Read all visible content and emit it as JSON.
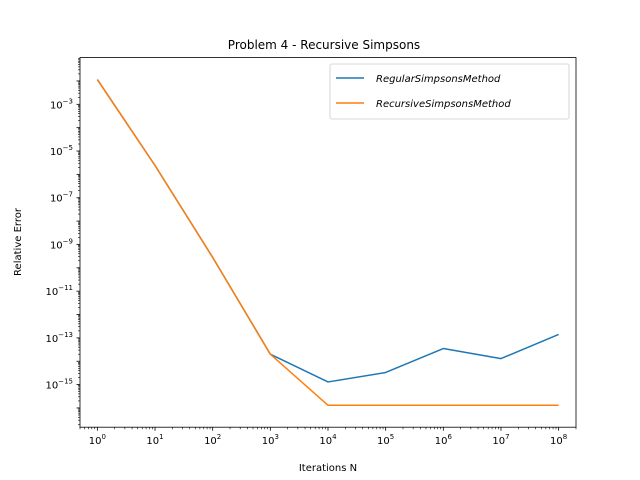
{
  "chart_data": {
    "type": "line",
    "title": "Problem 4 - Recursive Simpsons",
    "xlabel": "Iterations N",
    "ylabel": "Relative Error",
    "xscale": "log",
    "yscale": "log",
    "xlim": [
      0.5,
      200000000
    ],
    "ylim": [
      1.5e-17,
      0.1
    ],
    "grid": false,
    "legend_position": "top-right",
    "x": [
      1,
      10,
      100,
      1000,
      10000,
      100000,
      1000000,
      10000000,
      100000000
    ],
    "x_ticks": [
      {
        "base": "10",
        "exp": "0",
        "value": 1
      },
      {
        "base": "10",
        "exp": "1",
        "value": 10
      },
      {
        "base": "10",
        "exp": "2",
        "value": 100
      },
      {
        "base": "10",
        "exp": "3",
        "value": 1000
      },
      {
        "base": "10",
        "exp": "4",
        "value": 10000
      },
      {
        "base": "10",
        "exp": "5",
        "value": 100000
      },
      {
        "base": "10",
        "exp": "6",
        "value": 1000000
      },
      {
        "base": "10",
        "exp": "7",
        "value": 10000000
      },
      {
        "base": "10",
        "exp": "8",
        "value": 100000000
      }
    ],
    "y_ticks": [
      {
        "base": "10",
        "exp": "−15",
        "value": 1e-15
      },
      {
        "base": "10",
        "exp": "−13",
        "value": 1e-13
      },
      {
        "base": "10",
        "exp": "−11",
        "value": 1e-11
      },
      {
        "base": "10",
        "exp": "−9",
        "value": 1e-09
      },
      {
        "base": "10",
        "exp": "−7",
        "value": 1e-07
      },
      {
        "base": "10",
        "exp": "−5",
        "value": 1e-05
      },
      {
        "base": "10",
        "exp": "−3",
        "value": 0.001
      }
    ],
    "series": [
      {
        "name": "RegularSimpsonsMethod",
        "color": "#1f77b4",
        "values": [
          0.0115,
          2.4e-06,
          2.8e-10,
          2e-14,
          1.3e-15,
          3.3e-15,
          3.5e-14,
          1.3e-14,
          1.4e-13
        ]
      },
      {
        "name": "RecursiveSimpsonsMethod",
        "color": "#ff7f0e",
        "values": [
          0.0115,
          2.4e-06,
          2.8e-10,
          2e-14,
          1.3e-16,
          1.3e-16,
          1.3e-16,
          1.3e-16,
          1.3e-16
        ]
      }
    ]
  }
}
